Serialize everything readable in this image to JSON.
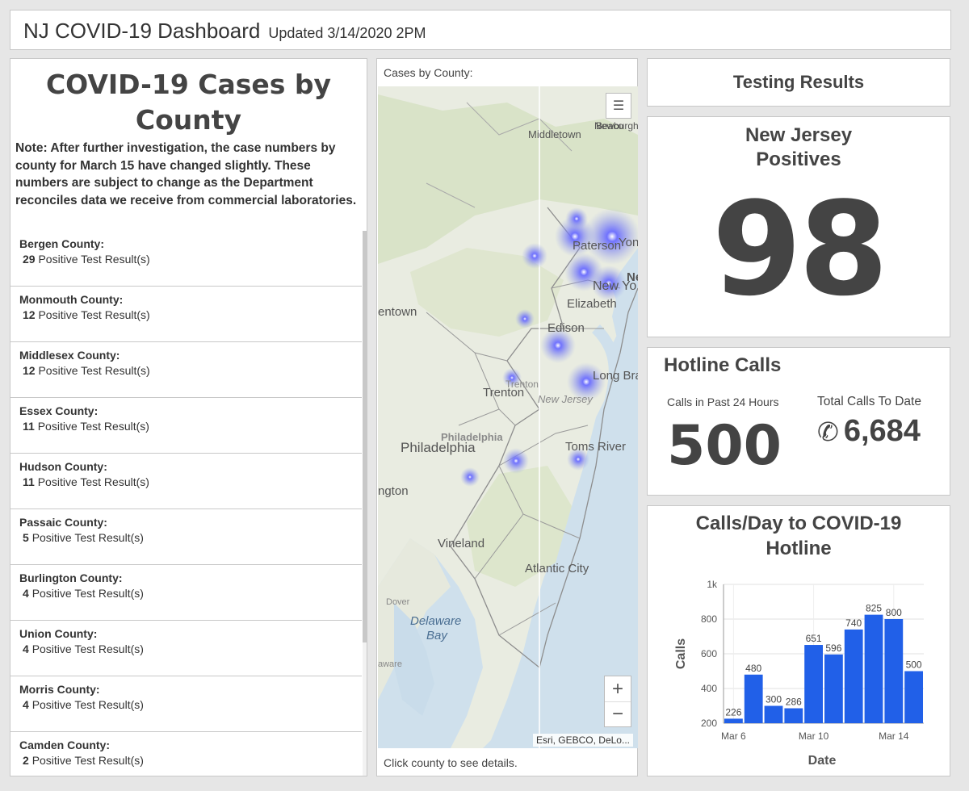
{
  "header": {
    "title": "NJ COVID-19 Dashboard",
    "updated": "Updated 3/14/2020 2PM"
  },
  "county_panel": {
    "title": "COVID-19 Cases by County",
    "note": "Note: After further investigation, the case numbers by county for March 15 have changed slightly.  These numbers are subject to change as the Department reconciles data we receive from commercial laboratories.",
    "result_suffix": "Positive Test Result(s)",
    "counties": [
      {
        "name": "Bergen County:",
        "count": "29"
      },
      {
        "name": "Monmouth County:",
        "count": "12"
      },
      {
        "name": "Middlesex County:",
        "count": "12"
      },
      {
        "name": "Essex County:",
        "count": "11"
      },
      {
        "name": "Hudson County:",
        "count": "11"
      },
      {
        "name": "Passaic County:",
        "count": "5"
      },
      {
        "name": "Burlington County:",
        "count": "4"
      },
      {
        "name": "Union County:",
        "count": "4"
      },
      {
        "name": "Morris County:",
        "count": "4"
      },
      {
        "name": "Camden County:",
        "count": "2"
      }
    ]
  },
  "map": {
    "label": "Cases by County:",
    "footer": "Click county to see details.",
    "attribution": "Esri, GEBCO, DeLo...",
    "zoom_in": "+",
    "zoom_out": "−",
    "places": {
      "middletown": "Middletown",
      "newburgh": "Newburgh",
      "beacon": "Beaco",
      "paterson": "Paterson",
      "yonkers": "Yon",
      "newyork": "New Yo",
      "ne": "Ne",
      "elizabeth": "Elizabeth",
      "allentown": "entown",
      "edison": "Edison",
      "trenton": "Trenton",
      "trenton2": "Trenton",
      "newjersey": "New Jersey",
      "longbranch": "Long Bra",
      "philadelphia": "Philadelphia",
      "philadelphia2": "Philadelphia",
      "tomsriver": "Toms River",
      "wilmington": "ngton",
      "vineland": "Vineland",
      "atlanticcity": "Atlantic City",
      "dover": "Dover",
      "delawarebay1": "Delaware",
      "delawarebay2": "Bay",
      "delaware": "aware"
    }
  },
  "testing": {
    "title": "Testing Results"
  },
  "positives": {
    "label_line1": "New Jersey",
    "label_line2": "Positives",
    "value": "98"
  },
  "hotline": {
    "title": "Hotline Calls",
    "past24_label": "Calls in Past 24 Hours",
    "past24_value": "500",
    "total_label": "Total Calls To Date",
    "total_value": "6,684",
    "phone_icon": "phone-icon"
  },
  "chart_data": {
    "type": "bar",
    "title_line1": "Calls/Day to COVID-19",
    "title_line2": "Hotline",
    "xlabel": "Date",
    "ylabel": "Calls",
    "ylim": [
      200,
      1000
    ],
    "yticks": [
      "200",
      "400",
      "600",
      "800",
      "1k"
    ],
    "ytick_values": [
      200,
      400,
      600,
      800,
      1000
    ],
    "xtick_labels": [
      "Mar 6",
      "Mar 10",
      "Mar 14"
    ],
    "xtick_index": [
      0,
      4,
      8
    ],
    "values": [
      226,
      480,
      300,
      286,
      651,
      596,
      740,
      825,
      800,
      500
    ],
    "value_labels": [
      "226",
      "480",
      "300",
      "286",
      "651",
      "596",
      "740",
      "825",
      "800",
      "500"
    ],
    "bar_color": "#2160e8"
  }
}
